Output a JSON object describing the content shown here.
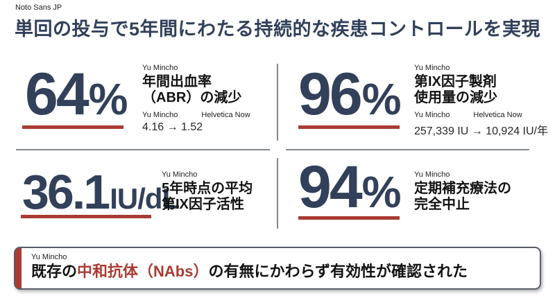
{
  "annotations": {
    "page_font": "Noto Sans JP",
    "serif_font": "Yu Mincho",
    "numeric_font": "Helvetica Now"
  },
  "title": "単回の投与で5年間にわたる持続的な疾患コントロールを実現",
  "stats": [
    {
      "value": "64",
      "unit": "%",
      "font_label": "Yu Mincho",
      "desc_line1": "年間出血率",
      "desc_line2": "（ABR）の減少",
      "detail_font_left": "Yu Mincho",
      "detail_font_right": "Helvetica Now",
      "detail": "4.16 → 1.52"
    },
    {
      "value": "96",
      "unit": "%",
      "font_label": "Yu Mincho",
      "desc_line1": "第IX因子製剤",
      "desc_line2": "使用量の減少",
      "detail_font_left": "Yu Mincho",
      "detail_font_right": "Helvetica Now",
      "detail": "257,339 IU → 10,924 IU/年"
    },
    {
      "value": "36.1",
      "unit": "IU/dL",
      "font_label": "Yu Mincho",
      "desc_line1": "5年時点の平均",
      "desc_line2": "第IX因子活性"
    },
    {
      "value": "94",
      "unit": "%",
      "font_label": "Yu Mincho",
      "desc_line1": "定期補充療法の",
      "desc_line2": "完全中止"
    }
  ],
  "callout": {
    "font_label": "Yu Mincho",
    "prefix": "既存の",
    "highlight": "中和抗体（NAbs）",
    "suffix": "の有無にかわらず有効性が確認された"
  },
  "colors": {
    "navy": "#32405a",
    "red": "#a93b32",
    "divider": "#81878e",
    "callout_border": "#565c66"
  }
}
